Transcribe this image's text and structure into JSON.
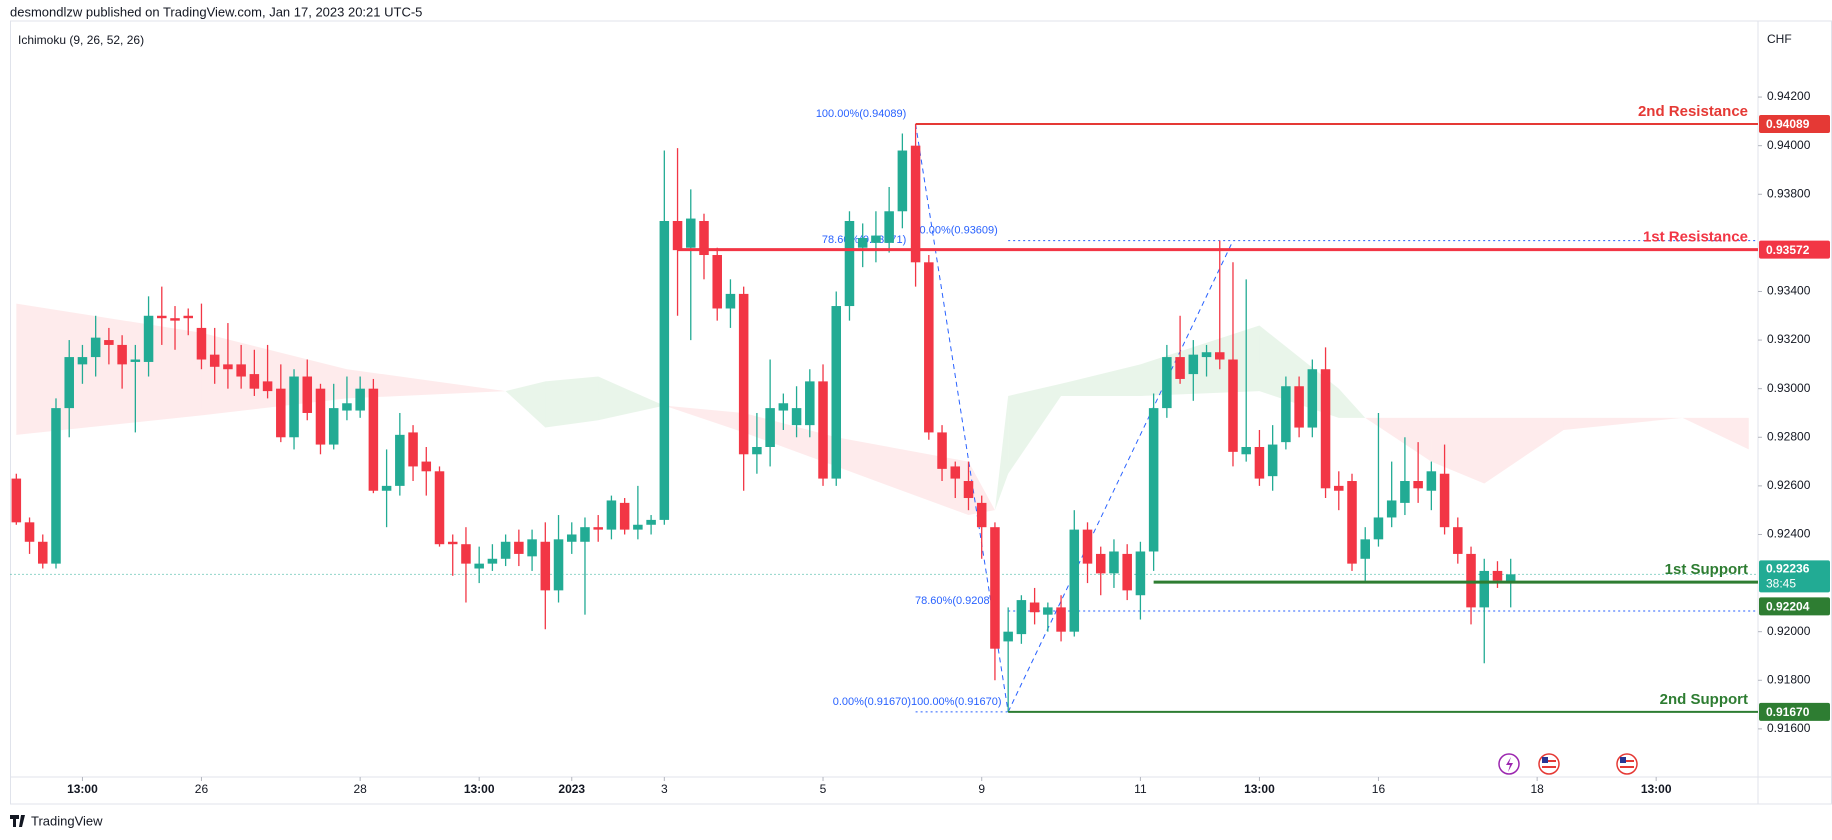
{
  "chart_data": {
    "type": "candlestick",
    "header": "desmondlzw published on TradingView.com, Jan 17, 2023 20:21 UTC-5",
    "indicator": "Ichimoku (9, 26, 52, 26)",
    "currency": "CHF",
    "brand": "TradingView",
    "xlim": [
      -0.44,
      131.7
    ],
    "ylim": [
      0.91402,
      0.94513
    ],
    "xticks": [
      {
        "value": 5,
        "label": "13:00"
      },
      {
        "value": 14,
        "label": "26"
      },
      {
        "value": 26,
        "label": "28"
      },
      {
        "value": 35,
        "label": "13:00"
      },
      {
        "value": 42,
        "label": "2023"
      },
      {
        "value": 49,
        "label": "3"
      },
      {
        "value": 61,
        "label": "5"
      },
      {
        "value": 73,
        "label": "9"
      },
      {
        "value": 85,
        "label": "11"
      },
      {
        "value": 94,
        "label": "13:00"
      },
      {
        "value": 103,
        "label": "16"
      },
      {
        "value": 115,
        "label": "18"
      },
      {
        "value": 124,
        "label": "13:00"
      }
    ],
    "yticks": [
      {
        "value": 0.942,
        "label": "0.94200"
      },
      {
        "value": 0.94,
        "label": "0.94000"
      },
      {
        "value": 0.938,
        "label": "0.93800"
      },
      {
        "value": 0.934,
        "label": "0.93400"
      },
      {
        "value": 0.932,
        "label": "0.93200"
      },
      {
        "value": 0.93,
        "label": "0.93000"
      },
      {
        "value": 0.928,
        "label": "0.92800"
      },
      {
        "value": 0.926,
        "label": "0.92600"
      },
      {
        "value": 0.924,
        "label": "0.92400"
      },
      {
        "value": 0.92,
        "label": "0.92000"
      },
      {
        "value": 0.918,
        "label": "0.91800"
      },
      {
        "value": 0.916,
        "label": "0.91600"
      }
    ],
    "candles": {
      "up_color": "#22ab94",
      "down_color": "#f23645",
      "open": [
        0.9263,
        0.9245,
        0.9237,
        0.9228,
        0.9292,
        0.931,
        0.9313,
        0.932,
        0.9318,
        0.9311,
        0.9311,
        0.933,
        0.9329,
        0.933,
        0.9325,
        0.9314,
        0.931,
        0.931,
        0.9306,
        0.9303,
        0.93,
        0.928,
        0.9305,
        0.93,
        0.9277,
        0.9291,
        0.9291,
        0.93,
        0.9258,
        0.926,
        0.9282,
        0.927,
        0.9266,
        0.9237,
        0.9236,
        0.9226,
        0.9228,
        0.923,
        0.9237,
        0.9231,
        0.9237,
        0.9217,
        0.9237,
        0.9237,
        0.9243,
        0.9242,
        0.9253,
        0.9242,
        0.9244,
        0.9246,
        0.9369,
        0.9358,
        0.9369,
        0.9355,
        0.9333,
        0.9339,
        0.9273,
        0.9276,
        0.9291,
        0.9285,
        0.9285,
        0.9303,
        0.9263,
        0.9334,
        0.9358,
        0.936,
        0.936,
        0.9373,
        0.94,
        0.9352,
        0.9282,
        0.9268,
        0.9262,
        0.9253,
        0.9243,
        0.9196,
        0.9199,
        0.9212,
        0.9207,
        0.921,
        0.92,
        0.9242,
        0.9232,
        0.9224,
        0.9232,
        0.9215,
        0.9233,
        0.9292,
        0.9313,
        0.9306,
        0.9313,
        0.9315,
        0.9312,
        0.9273,
        0.9276,
        0.9264,
        0.9278,
        0.9301,
        0.9284,
        0.9308,
        0.926,
        0.9262,
        0.923,
        0.9238,
        0.9247,
        0.9253,
        0.9262,
        0.9258,
        0.9265,
        0.9243,
        0.9232,
        0.921,
        0.9225,
        0.92204
      ],
      "high": [
        0.9265,
        0.9247,
        0.924,
        0.9296,
        0.932,
        0.9318,
        0.933,
        0.9325,
        0.9322,
        0.9318,
        0.9338,
        0.9342,
        0.9334,
        0.9333,
        0.9335,
        0.9325,
        0.9327,
        0.9318,
        0.9316,
        0.9318,
        0.931,
        0.9308,
        0.9312,
        0.9302,
        0.9302,
        0.9305,
        0.9305,
        0.9304,
        0.9275,
        0.929,
        0.9285,
        0.9276,
        0.9268,
        0.924,
        0.9243,
        0.9235,
        0.9236,
        0.924,
        0.9242,
        0.9242,
        0.9245,
        0.9248,
        0.9245,
        0.9247,
        0.9248,
        0.9256,
        0.9255,
        0.926,
        0.9248,
        0.9398,
        0.9399,
        0.9382,
        0.9372,
        0.9358,
        0.9345,
        0.9342,
        0.929,
        0.9312,
        0.9298,
        0.9301,
        0.9308,
        0.931,
        0.934,
        0.9373,
        0.9368,
        0.9373,
        0.9383,
        0.9405,
        0.94089,
        0.9355,
        0.9285,
        0.927,
        0.927,
        0.9256,
        0.9245,
        0.921,
        0.9215,
        0.9218,
        0.9212,
        0.9215,
        0.925,
        0.9245,
        0.9235,
        0.9238,
        0.9236,
        0.9237,
        0.9298,
        0.9318,
        0.933,
        0.932,
        0.9318,
        0.93609,
        0.9352,
        0.9345,
        0.9283,
        0.9285,
        0.9305,
        0.9305,
        0.9312,
        0.9317,
        0.9266,
        0.9265,
        0.9243,
        0.929,
        0.927,
        0.928,
        0.9278,
        0.927,
        0.9277,
        0.9247,
        0.9235,
        0.923,
        0.9229,
        0.923
      ],
      "low": [
        0.9244,
        0.9232,
        0.9226,
        0.9226,
        0.928,
        0.9302,
        0.9305,
        0.931,
        0.93,
        0.9282,
        0.9305,
        0.9318,
        0.9316,
        0.9322,
        0.9308,
        0.9302,
        0.93,
        0.93,
        0.9297,
        0.9296,
        0.9278,
        0.9275,
        0.9287,
        0.9273,
        0.9275,
        0.9287,
        0.9288,
        0.9257,
        0.9243,
        0.9256,
        0.9262,
        0.9256,
        0.9235,
        0.9223,
        0.9212,
        0.922,
        0.9225,
        0.9227,
        0.9227,
        0.9225,
        0.9201,
        0.9212,
        0.9232,
        0.9207,
        0.9237,
        0.9238,
        0.924,
        0.9238,
        0.924,
        0.9244,
        0.933,
        0.932,
        0.9345,
        0.9328,
        0.9325,
        0.9258,
        0.9265,
        0.9268,
        0.9283,
        0.928,
        0.928,
        0.926,
        0.926,
        0.9328,
        0.935,
        0.9352,
        0.9356,
        0.9366,
        0.9342,
        0.9279,
        0.9262,
        0.9255,
        0.925,
        0.923,
        0.918,
        0.9167,
        0.9195,
        0.9203,
        0.92,
        0.9196,
        0.9198,
        0.922,
        0.9215,
        0.9218,
        0.9213,
        0.9205,
        0.9225,
        0.9288,
        0.9302,
        0.9295,
        0.9305,
        0.9308,
        0.9268,
        0.927,
        0.926,
        0.9258,
        0.9275,
        0.928,
        0.928,
        0.9255,
        0.925,
        0.9225,
        0.922,
        0.9235,
        0.9243,
        0.9248,
        0.9253,
        0.925,
        0.924,
        0.9228,
        0.9203,
        0.9187,
        0.9218,
        0.921
      ],
      "close": [
        0.9245,
        0.9237,
        0.9228,
        0.9292,
        0.9313,
        0.9313,
        0.9321,
        0.9318,
        0.931,
        0.9312,
        0.933,
        0.9329,
        0.9328,
        0.9329,
        0.9312,
        0.9309,
        0.9308,
        0.9305,
        0.93,
        0.9299,
        0.928,
        0.9305,
        0.929,
        0.9277,
        0.9292,
        0.9294,
        0.93,
        0.9258,
        0.926,
        0.9281,
        0.9268,
        0.9266,
        0.9236,
        0.9236,
        0.9228,
        0.9228,
        0.923,
        0.9237,
        0.9232,
        0.9238,
        0.9217,
        0.9238,
        0.924,
        0.9243,
        0.9242,
        0.9254,
        0.9242,
        0.9244,
        0.9246,
        0.9369,
        0.9357,
        0.937,
        0.9355,
        0.9333,
        0.9339,
        0.9273,
        0.9276,
        0.9292,
        0.9294,
        0.9292,
        0.9303,
        0.9263,
        0.9334,
        0.9369,
        0.9362,
        0.9363,
        0.9373,
        0.9398,
        0.9352,
        0.9282,
        0.9267,
        0.9263,
        0.9255,
        0.9243,
        0.9193,
        0.92,
        0.9213,
        0.9208,
        0.921,
        0.92,
        0.9242,
        0.9228,
        0.9224,
        0.9233,
        0.9217,
        0.9233,
        0.9292,
        0.9313,
        0.9304,
        0.9314,
        0.9315,
        0.9312,
        0.9274,
        0.9276,
        0.9263,
        0.9277,
        0.9301,
        0.9284,
        0.9308,
        0.9259,
        0.9258,
        0.9228,
        0.9238,
        0.9247,
        0.9254,
        0.9262,
        0.9259,
        0.9266,
        0.9243,
        0.9232,
        0.921,
        0.9225,
        0.9221,
        0.92236
      ]
    },
    "ichimoku": {
      "bull_color": "rgba(76,175,80,0.12)",
      "bear_color": "rgba(242,54,69,0.1)",
      "x": [
        0,
        14,
        25,
        37,
        40,
        44,
        49,
        55,
        62,
        72,
        74,
        75,
        79,
        85,
        94,
        100,
        102,
        107,
        111,
        117,
        126,
        131
      ],
      "span_a": [
        0.9281,
        0.9289,
        0.9296,
        0.9299,
        0.9303,
        0.9305,
        0.9293,
        0.9282,
        0.9268,
        0.9248,
        0.925,
        0.9297,
        0.9302,
        0.931,
        0.9326,
        0.93,
        0.9288,
        0.927,
        0.9261,
        0.9283,
        0.9288,
        0.9275
      ],
      "span_b": [
        0.9335,
        0.9323,
        0.9308,
        0.9299,
        0.9284,
        0.9287,
        0.9293,
        0.929,
        0.928,
        0.927,
        0.925,
        0.9265,
        0.9297,
        0.9297,
        0.9299,
        0.9288,
        0.9288,
        0.9288,
        0.9288,
        0.9288,
        0.9288,
        0.9288
      ]
    },
    "levels": [
      {
        "name": "2nd Resistance",
        "value": 0.94089,
        "label": "0.94089",
        "x_start": 68,
        "color": "#e53935",
        "width": 2
      },
      {
        "name": "1st Resistance",
        "value": 0.93572,
        "label": "0.93572",
        "x_start": 50,
        "color": "#f23645",
        "width": 3
      },
      {
        "name": "1st Support",
        "value": 0.92204,
        "label": "0.92204",
        "x_start": 86,
        "color": "#2e7d32",
        "width": 3
      },
      {
        "name": "2nd Support",
        "value": 0.9167,
        "label": "0.91670",
        "x_start": 75,
        "color": "#2e7d32",
        "width": 2
      }
    ],
    "last_price": {
      "value": 0.92236,
      "label": "0.92236",
      "countdown": "38:45",
      "color": "#22ab94"
    },
    "fib_color": "#2962ff",
    "fib_labels": [
      {
        "label": "100.00%(0.94089)",
        "value": 0.94089,
        "x": 67.3,
        "align": "end"
      },
      {
        "label": "78.60%(0.93571)",
        "value": 0.93571,
        "x": 67.3,
        "align": "end"
      },
      {
        "label": "0.00%(0.93609)",
        "value": 0.93609,
        "x": 68.3,
        "align": "start",
        "line": [
          75,
          131.7
        ]
      },
      {
        "label": "78.60%(0.9208",
        "value": 0.92085,
        "x": 73.6,
        "align": "end",
        "line": [
          75,
          131.7
        ]
      },
      {
        "label": "0.00%(0.91670)100.00%(0.91670)",
        "value": 0.9167,
        "x": 74.5,
        "align": "end",
        "line": [
          68,
          75
        ]
      }
    ],
    "fib_trend": [
      {
        "x": [
          68,
          75
        ],
        "y": [
          0.94089,
          0.9167
        ]
      },
      {
        "x": [
          75,
          92
        ],
        "y": [
          0.9167,
          0.93609
        ]
      }
    ]
  }
}
